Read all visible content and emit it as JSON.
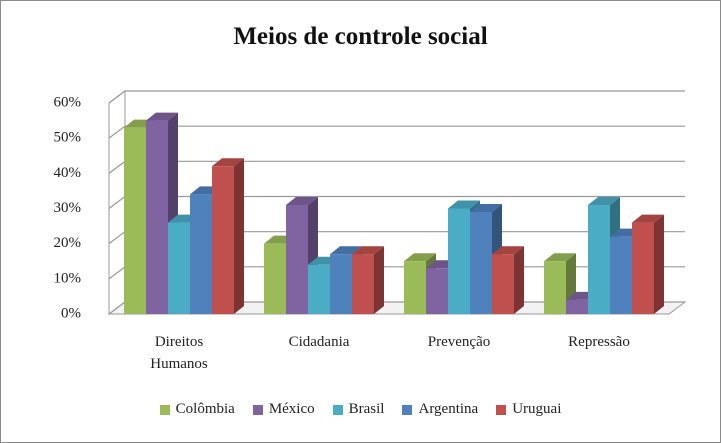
{
  "chart_data": {
    "type": "bar3d",
    "title": "Meios de controle social",
    "categories": [
      "Direitos Humanos",
      "Cidadania",
      "Prevenção",
      "Repressão"
    ],
    "series": [
      {
        "name": "Colômbia",
        "color": "#9bbb59",
        "values": [
          53,
          20,
          15,
          15
        ]
      },
      {
        "name": "México",
        "color": "#8064a2",
        "values": [
          55,
          31,
          13,
          4
        ]
      },
      {
        "name": "Brasil",
        "color": "#4bacc6",
        "values": [
          26,
          14,
          30,
          31
        ]
      },
      {
        "name": "Argentina",
        "color": "#4f81bd",
        "values": [
          34,
          17,
          29,
          22
        ]
      },
      {
        "name": "Uruguai",
        "color": "#c0504d",
        "values": [
          42,
          17,
          17,
          26
        ]
      }
    ],
    "ylim": [
      0,
      60
    ],
    "yticks": [
      {
        "value": 0,
        "label": "0%"
      },
      {
        "value": 10,
        "label": "10%"
      },
      {
        "value": 20,
        "label": "20%"
      },
      {
        "value": 30,
        "label": "30%"
      },
      {
        "value": 40,
        "label": "40%"
      },
      {
        "value": 50,
        "label": "50%"
      },
      {
        "value": 60,
        "label": "60%"
      }
    ],
    "grid": true
  }
}
